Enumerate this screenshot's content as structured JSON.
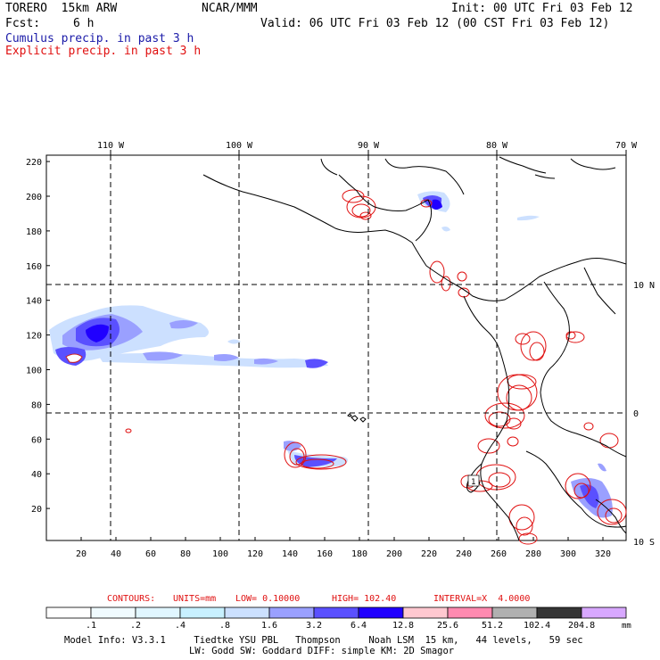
{
  "header": {
    "model_name": "TORERO  15km ARW",
    "org": "NCAR/MMM",
    "init": "Init: 00 UTC Fri 03 Feb 12",
    "fcst_label": "Fcst:",
    "fcst_value": "6 h",
    "valid": "Valid: 06 UTC Fri 03 Feb 12 (00 CST Fri 03 Feb 12)",
    "line_cumulus": "Cumulus precip. in past 3 h",
    "line_explicit": "Explicit precip. in past 3 h"
  },
  "map": {
    "top_lon_labels": [
      "110 W",
      "100 W",
      "90 W",
      "80 W",
      "70 W"
    ],
    "right_lat_labels": [
      "10 N",
      "0",
      "10 S"
    ],
    "y_ticks": [
      220,
      200,
      180,
      160,
      140,
      120,
      100,
      80,
      60,
      40,
      20
    ],
    "x_ticks": [
      20,
      40,
      60,
      80,
      100,
      120,
      140,
      160,
      180,
      200,
      220,
      240,
      260,
      280,
      300,
      320
    ],
    "contour_marker": "1"
  },
  "contours": {
    "label": "CONTOURS:",
    "units": "UNITS=mm",
    "low": "LOW= 0.10000",
    "high": "HIGH= 102.40",
    "interval": "INTERVAL=X  4.0000"
  },
  "colorbar": {
    "labels": [
      ".1",
      ".2",
      ".4",
      ".8",
      "1.6",
      "3.2",
      "6.4",
      "12.8",
      "25.6",
      "51.2",
      "102.4",
      "204.8"
    ],
    "unit": "mm",
    "colors": [
      "#ffffff",
      "#f0fbff",
      "#e0f6ff",
      "#c8f0ff",
      "#cce0ff",
      "#9aa0ff",
      "#5a50ff",
      "#2000ff",
      "#ffc8d0",
      "#ff8ab0",
      "#b0b0b0",
      "#353535",
      "#d8a8ff"
    ]
  },
  "footer": {
    "line1": "Model Info: V3.3.1     Tiedtke YSU PBL   Thompson     Noah LSM  15 km,   44 levels,   59 sec",
    "line2": "LW: Godd SW: Goddard DIFF: simple KM: 2D Smagor"
  }
}
